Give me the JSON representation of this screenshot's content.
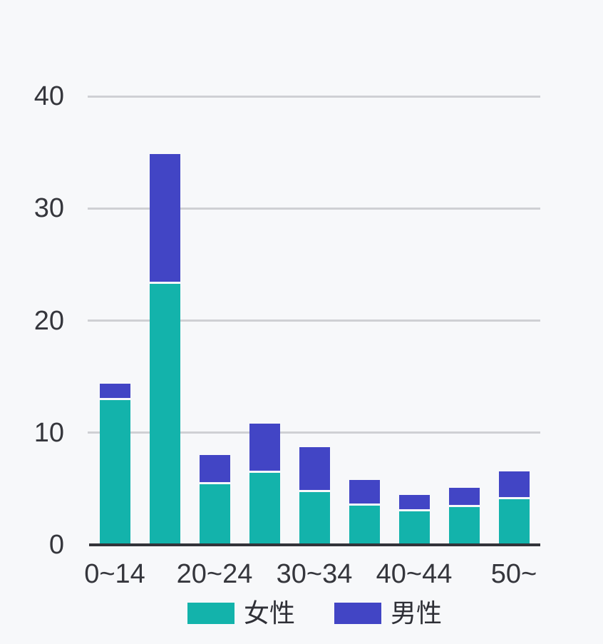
{
  "page": {
    "background": "#f7f8fa"
  },
  "chart_data": {
    "type": "bar",
    "stacked": true,
    "title": "",
    "xlabel": "",
    "ylabel": "",
    "categories": [
      "0~14",
      "",
      "20~24",
      "",
      "30~34",
      "",
      "40~44",
      "",
      "50~"
    ],
    "series": [
      {
        "name": "女性",
        "color": "#13b3ab",
        "values": [
          12.9,
          23.3,
          5.4,
          6.4,
          4.7,
          3.5,
          3.0,
          3.4,
          4.1
        ]
      },
      {
        "name": "男性",
        "color": "#4245c5",
        "values": [
          1.3,
          11.4,
          2.4,
          4.2,
          3.8,
          2.1,
          1.3,
          1.5,
          2.3
        ]
      }
    ],
    "ylim": [
      0,
      40
    ],
    "yticks": [
      0,
      10,
      20,
      30,
      40
    ],
    "grid": "horizontal-only",
    "gridline_color": "#cfd0d4",
    "axis_color": "#33343a",
    "label_color": "#35363c",
    "legend_position": "bottom"
  }
}
